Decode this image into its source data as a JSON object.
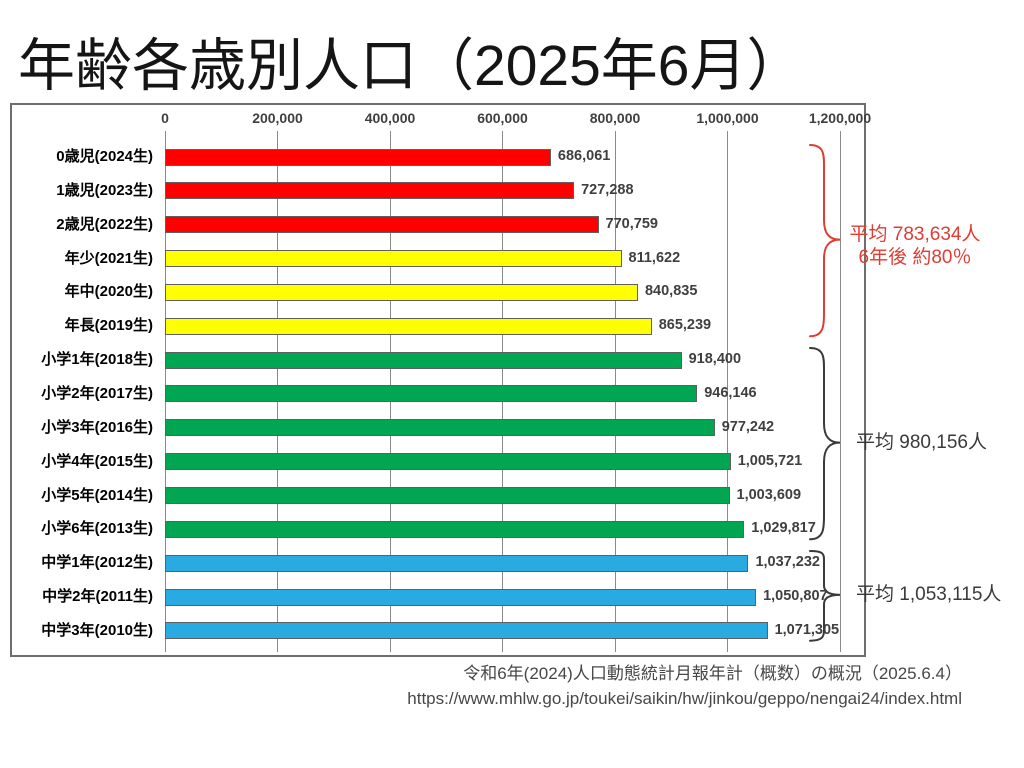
{
  "title": "年齢各歳別人口（2025年6月）",
  "chart_data": {
    "type": "bar",
    "orientation": "horizontal",
    "title": "年齢各歳別人口（2025年6月）",
    "x_axis": {
      "position": "top",
      "min": 0,
      "max": 1200000,
      "tick_interval": 200000,
      "tick_labels": [
        "0",
        "200,000",
        "400,000",
        "600,000",
        "800,000",
        "1,000,000",
        "1,200,000"
      ],
      "grid": true
    },
    "rows": [
      {
        "label": "0歳児(2024生)",
        "value": 686061,
        "value_label": "686,061",
        "color": "#fe0000"
      },
      {
        "label": "1歳児(2023生)",
        "value": 727288,
        "value_label": "727,288",
        "color": "#fe0000"
      },
      {
        "label": "2歳児(2022生)",
        "value": 770759,
        "value_label": "770,759",
        "color": "#fe0000"
      },
      {
        "label": "年少(2021生)",
        "value": 811622,
        "value_label": "811,622",
        "color": "#ffff00"
      },
      {
        "label": "年中(2020生)",
        "value": 840835,
        "value_label": "840,835",
        "color": "#ffff00"
      },
      {
        "label": "年長(2019生)",
        "value": 865239,
        "value_label": "865,239",
        "color": "#ffff00"
      },
      {
        "label": "小学1年(2018生)",
        "value": 918400,
        "value_label": "918,400",
        "color": "#00a651"
      },
      {
        "label": "小学2年(2017生)",
        "value": 946146,
        "value_label": "946,146",
        "color": "#00a651"
      },
      {
        "label": "小学3年(2016生)",
        "value": 977242,
        "value_label": "977,242",
        "color": "#00a651"
      },
      {
        "label": "小学4年(2015生)",
        "value": 1005721,
        "value_label": "1,005,721",
        "color": "#00a651"
      },
      {
        "label": "小学5年(2014生)",
        "value": 1003609,
        "value_label": "1,003,609",
        "color": "#00a651"
      },
      {
        "label": "小学6年(2013生)",
        "value": 1029817,
        "value_label": "1,029,817",
        "color": "#00a651"
      },
      {
        "label": "中学1年(2012生)",
        "value": 1037232,
        "value_label": "1,037,232",
        "color": "#29abe2"
      },
      {
        "label": "中学2年(2011生)",
        "value": 1050807,
        "value_label": "1,050,807",
        "color": "#29abe2"
      },
      {
        "label": "中学3年(2010生)",
        "value": 1071305,
        "value_label": "1,071,305",
        "color": "#29abe2"
      }
    ],
    "annotations": [
      {
        "lines": [
          "平均 783,634人",
          "6年後 約80％"
        ],
        "color": "#e03c31",
        "row_start": 0,
        "row_end": 5
      },
      {
        "lines": [
          "平均 980,156人"
        ],
        "color": "#3a3a3a",
        "row_start": 6,
        "row_end": 11
      },
      {
        "lines": [
          "平均 1,053,115人"
        ],
        "color": "#3a3a3a",
        "row_start": 12,
        "row_end": 14
      }
    ],
    "legend": null
  },
  "colors": {
    "grid": "#8a8a8a",
    "figure_border": "#6e6e6e",
    "bar_border": "#5f5f5f",
    "axis_text": "#3f3f3f",
    "value_text": "#3f3f3f",
    "category_text": "#000000",
    "annotation_red": "#e03c31",
    "annotation_black": "#3a3a3a"
  },
  "footer": {
    "source": "令和6年(2024)人口動態統計月報年計（概数）の概況（2025.6.4）",
    "url": "https://www.mhlw.go.jp/toukei/saikin/hw/jinkou/geppo/nengai24/index.html"
  }
}
